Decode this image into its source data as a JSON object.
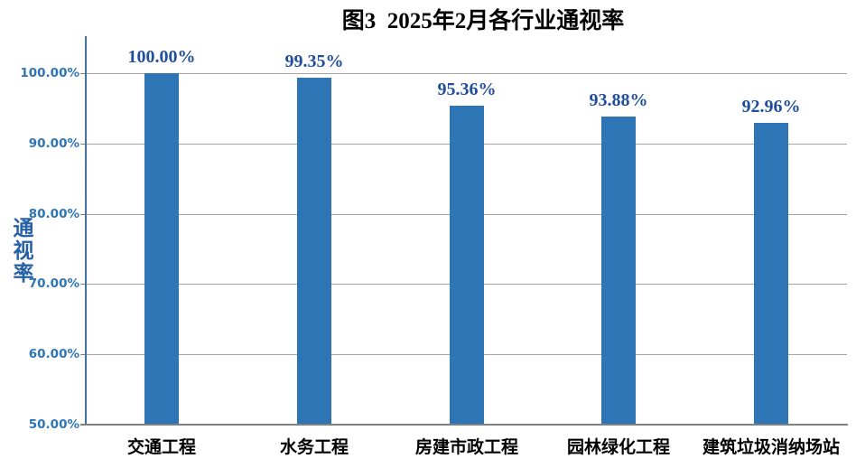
{
  "title": {
    "text": "图3  2025年2月各行业通视率"
  },
  "y_axis": {
    "title": "通视率"
  },
  "colors": {
    "bar": "#2E75B6",
    "data_label": "#1F4E9C",
    "tick_label": "#2E75B6",
    "axis_title": "#2660A6",
    "category_label": "#000000",
    "gridline": "#A6A6A6",
    "y_axis_line": "#41719C",
    "x_axis_line": "#808080",
    "background": "#FFFFFF",
    "title_color": "#000000"
  },
  "chart_data": {
    "type": "bar",
    "title": "图3  2025年2月各行业通视率",
    "categories": [
      "交通工程",
      "水务工程",
      "房建市政工程",
      "园林绿化工程",
      "建筑垃圾消纳场站"
    ],
    "values": [
      100.0,
      99.35,
      95.36,
      93.88,
      92.96
    ],
    "data_labels": [
      "100.00%",
      "99.35%",
      "95.36%",
      "93.88%",
      "92.96%"
    ],
    "ylabel": "通视率",
    "xlabel": "",
    "ylim": [
      50,
      105
    ],
    "yticks": [
      50,
      60,
      70,
      80,
      90,
      100
    ],
    "ytick_labels": [
      "50.00%",
      "60.00%",
      "70.00%",
      "80.00%",
      "90.00%",
      "100.00%"
    ],
    "grid": true,
    "legend": false,
    "bar_color": "#2E75B6",
    "value_unit": "%"
  }
}
